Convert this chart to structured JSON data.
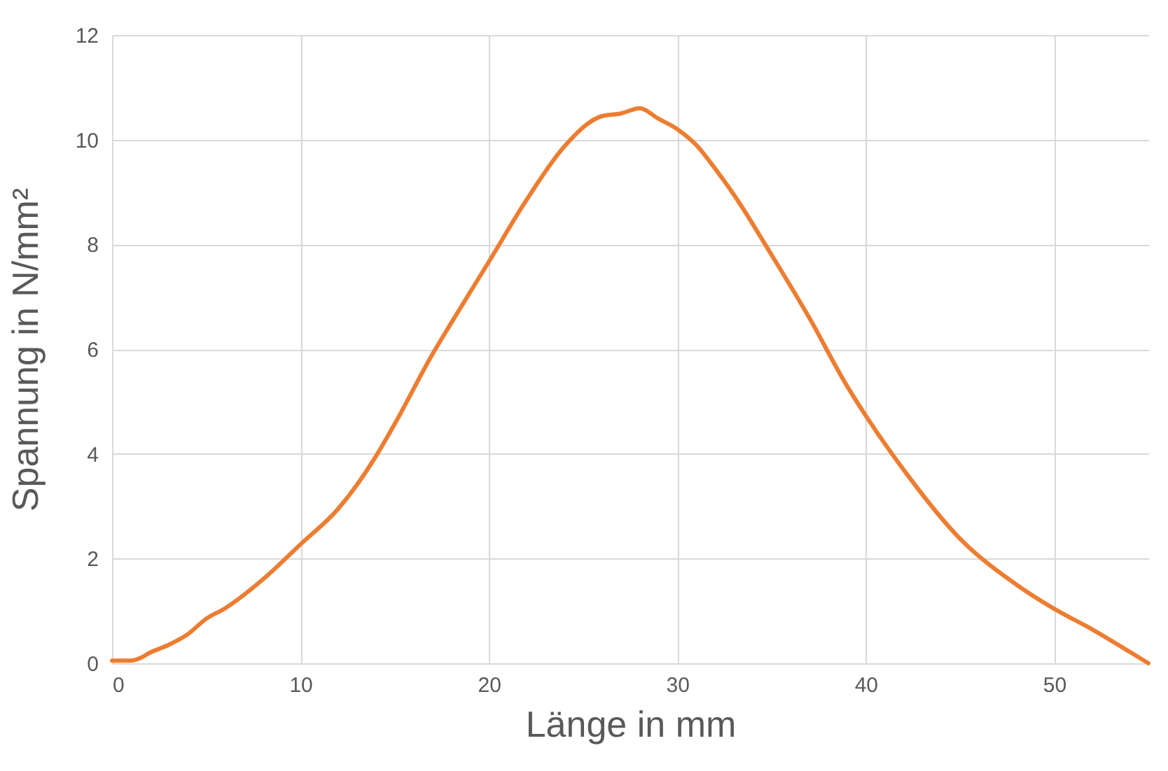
{
  "chart_data": {
    "type": "line",
    "xlabel": "Länge in mm",
    "ylabel": "Spannung in N/mm²",
    "x": [
      0,
      1,
      1.5,
      2,
      3,
      4,
      5,
      6,
      8,
      10,
      12,
      14,
      15,
      17,
      18,
      20,
      22,
      24,
      26,
      27,
      28,
      29,
      30,
      31,
      32,
      33,
      35,
      37,
      39,
      40,
      42,
      45,
      48,
      50,
      52,
      54,
      55
    ],
    "series": [
      {
        "color": "#ed7d31",
        "values": [
          0.05,
          0.05,
          0.1,
          0.2,
          0.35,
          0.55,
          0.85,
          1.05,
          1.6,
          2.27,
          2.95,
          3.95,
          4.57,
          5.9,
          6.5,
          7.67,
          8.85,
          9.87,
          10.45,
          10.5,
          10.6,
          10.4,
          10.2,
          9.9,
          9.45,
          8.95,
          7.8,
          6.6,
          5.3,
          4.73,
          3.7,
          2.38,
          1.5,
          1.04,
          0.65,
          0.22,
          0
        ]
      }
    ],
    "xlim": [
      0,
      55
    ],
    "xticks": [
      0,
      10,
      20,
      30,
      40,
      50
    ],
    "ylim": [
      0,
      12
    ],
    "yticks": [
      0,
      2,
      4,
      6,
      8,
      10,
      12
    ],
    "grid": true,
    "marker": "none",
    "line_style": "solid"
  }
}
